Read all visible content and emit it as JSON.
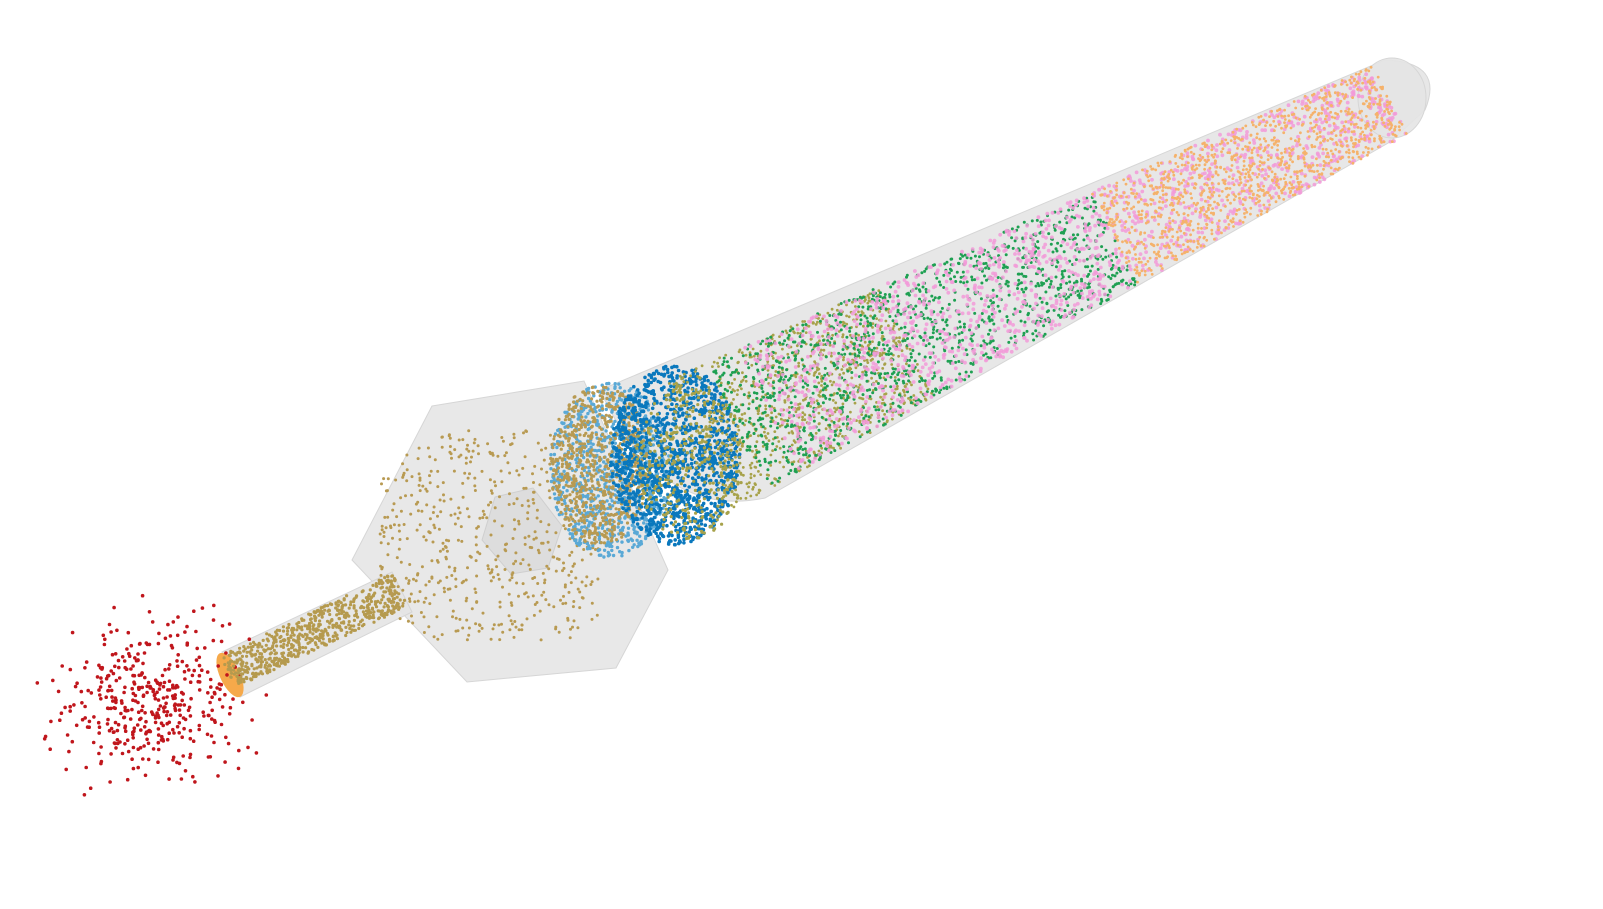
{
  "scene": {
    "background_color": "#ffffff",
    "geometry_color": "#e4e4e4",
    "geometry_edge_color": "#d6d6d6",
    "inlet_color": "#f6a94a"
  },
  "particle_groups": [
    {
      "name": "outside-source",
      "color": "#c0161c"
    },
    {
      "name": "inlet-pipe",
      "color": "#b59a4e"
    },
    {
      "name": "hexagonal-chamber",
      "color": "#b89a52"
    },
    {
      "name": "swirl-front-light",
      "color": "#5aa9d6"
    },
    {
      "name": "swirl-front-dark",
      "color": "#0a78bd"
    },
    {
      "name": "downstream-olive",
      "color": "#a7a24a"
    },
    {
      "name": "duct-green",
      "color": "#1ea052"
    },
    {
      "name": "duct-pink",
      "color": "#f29ad8"
    },
    {
      "name": "outlet-orange",
      "color": "#f5b26b"
    }
  ]
}
